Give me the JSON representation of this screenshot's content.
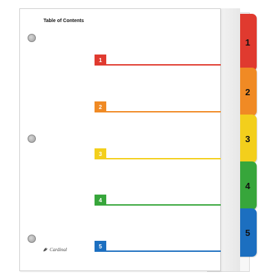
{
  "document": {
    "title": "Table of Contents",
    "brand": "Cardinal"
  },
  "entries": [
    {
      "number": "1",
      "color": "#e03a2f"
    },
    {
      "number": "2",
      "color": "#f08a24"
    },
    {
      "number": "3",
      "color": "#f3cf1c"
    },
    {
      "number": "4",
      "color": "#37a63b"
    },
    {
      "number": "5",
      "color": "#1c6fc0"
    }
  ],
  "tabs": [
    {
      "number": "1",
      "color": "#e03a2f"
    },
    {
      "number": "2",
      "color": "#f08a24"
    },
    {
      "number": "3",
      "color": "#f3cf1c"
    },
    {
      "number": "4",
      "color": "#37a63b"
    },
    {
      "number": "5",
      "color": "#1c6fc0"
    }
  ]
}
